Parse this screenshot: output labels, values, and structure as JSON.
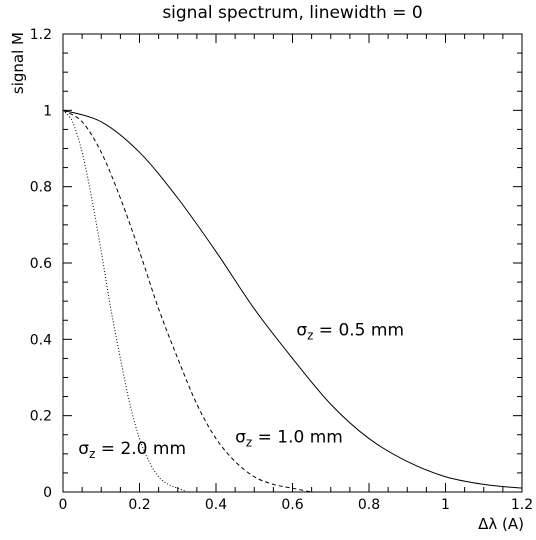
{
  "chart_data": {
    "type": "line",
    "title": "signal spectrum, linewidth = 0",
    "xlabel": "Δλ (A)",
    "ylabel": "signal M",
    "xlim": [
      0,
      1.2
    ],
    "ylim": [
      0,
      1.2
    ],
    "xticks": [
      "0",
      "0.2",
      "0.4",
      "0.6",
      "0.8",
      "1",
      "1.2"
    ],
    "yticks": [
      "0",
      "0.2",
      "0.4",
      "0.6",
      "0.8",
      "1",
      "1.2"
    ],
    "grid": false,
    "legend": "none",
    "series": [
      {
        "label": "σz = 0.5 mm",
        "style": "solid",
        "x": [
          0,
          0.1,
          0.2,
          0.3,
          0.4,
          0.5,
          0.6,
          0.7,
          0.8,
          0.9,
          1.0,
          1.1,
          1.2
        ],
        "y": [
          1.0,
          0.97,
          0.89,
          0.77,
          0.63,
          0.48,
          0.35,
          0.23,
          0.14,
          0.08,
          0.04,
          0.02,
          0.01
        ]
      },
      {
        "label": "σz = 1.0 mm",
        "style": "dashed",
        "x": [
          0,
          0.05,
          0.1,
          0.15,
          0.2,
          0.25,
          0.3,
          0.35,
          0.4,
          0.45,
          0.5,
          0.55,
          0.6,
          0.65
        ],
        "y": [
          1.0,
          0.97,
          0.89,
          0.77,
          0.63,
          0.48,
          0.35,
          0.23,
          0.14,
          0.08,
          0.04,
          0.02,
          0.01,
          0.0
        ]
      },
      {
        "label": "σz = 2.0 mm",
        "style": "dotted",
        "x": [
          0,
          0.025,
          0.05,
          0.075,
          0.1,
          0.125,
          0.15,
          0.175,
          0.2,
          0.225,
          0.25,
          0.275,
          0.3,
          0.325
        ],
        "y": [
          1.0,
          0.97,
          0.89,
          0.77,
          0.63,
          0.48,
          0.35,
          0.23,
          0.14,
          0.08,
          0.04,
          0.02,
          0.01,
          0.0
        ]
      }
    ],
    "annotations": [
      {
        "text": "σz = 0.5 mm",
        "main": "σ",
        "sub": "z",
        "rest": " = 0.5 mm",
        "x": 0.61,
        "y": 0.41
      },
      {
        "text": "σz = 1.0 mm",
        "main": "σ",
        "sub": "z",
        "rest": " = 1.0 mm",
        "x": 0.45,
        "y": 0.13
      },
      {
        "text": "σz = 2.0 mm",
        "main": "σ",
        "sub": "z",
        "rest": " = 2.0 mm",
        "x": 0.04,
        "y": 0.1
      }
    ]
  }
}
